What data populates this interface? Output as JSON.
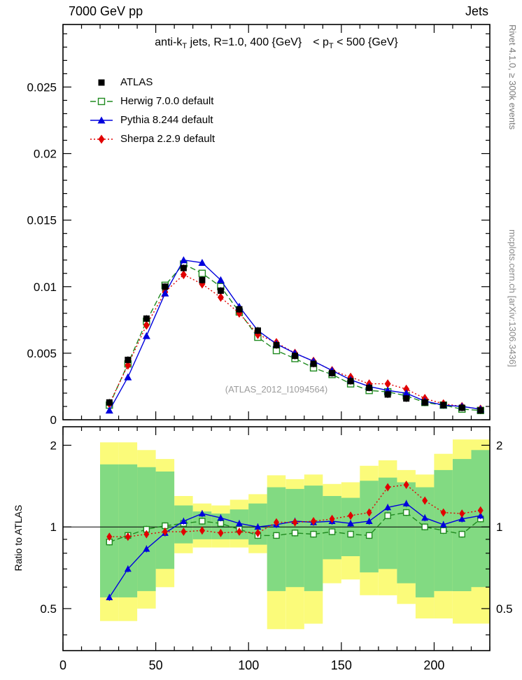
{
  "header": {
    "left": "7000 GeV pp",
    "right": "Jets"
  },
  "title": {
    "p1": "anti-k",
    "s1": "T",
    "p2": " jets, R=1.0, 400 {GeV}",
    "p3": "< p",
    "s2": "T",
    "p4": " < 500 {GeV}"
  },
  "watermark": "(ATLAS_2012_I1094564)",
  "side_notes": {
    "top": "Rivet 4.1.0, ≥ 300k events",
    "bottom": "mcplots.cern.ch [arXiv:1306.3436]"
  },
  "ratio_axis_label": "Ratio to ATLAS",
  "chart_data": {
    "type": "line",
    "title": "anti-kT jets, R=1.0, 400 {GeV} < pT < 500 {GeV}",
    "xlim": [
      0,
      230
    ],
    "xticks": [
      0,
      50,
      100,
      150,
      200
    ],
    "xtick_labels": [
      "0",
      "50",
      "100",
      "150",
      "200"
    ],
    "x_minor_step": 10,
    "x": [
      25,
      35,
      45,
      55,
      65,
      75,
      85,
      95,
      105,
      115,
      125,
      135,
      145,
      155,
      165,
      175,
      185,
      195,
      205,
      215,
      225
    ],
    "main": {
      "ylim": [
        0,
        0.0297
      ],
      "yticks": [
        0,
        0.005,
        0.01,
        0.015,
        0.02,
        0.025
      ],
      "ytick_labels": [
        "0",
        "0.005",
        "0.01",
        "0.015",
        "0.02",
        "0.025"
      ],
      "series": [
        {
          "name": "ATLAS",
          "color": "#000000",
          "marker": "square-filled",
          "line": "none",
          "values": [
            0.0013,
            0.0045,
            0.0076,
            0.01,
            0.0114,
            0.0105,
            0.0097,
            0.0083,
            0.0067,
            0.0056,
            0.0048,
            0.0042,
            0.0035,
            0.0029,
            0.0024,
            0.0019,
            0.0016,
            0.0013,
            0.0011,
            0.0009,
            0.0007
          ]
        },
        {
          "name": "Herwig 7.0.0 default",
          "color": "#1f8a1f",
          "marker": "square-open",
          "line": "dashed",
          "values": [
            0.0011,
            0.0042,
            0.0074,
            0.0101,
            0.0117,
            0.011,
            0.01,
            0.0081,
            0.0062,
            0.0052,
            0.0046,
            0.0039,
            0.0034,
            0.0027,
            0.0022,
            0.0021,
            0.0018,
            0.0013,
            0.0011,
            0.0008,
            0.0007
          ]
        },
        {
          "name": "Pythia 8.244 default",
          "color": "#0000dd",
          "marker": "triangle-up",
          "line": "solid",
          "values": [
            0.0007,
            0.0032,
            0.0063,
            0.0095,
            0.012,
            0.0118,
            0.0105,
            0.0085,
            0.0067,
            0.0057,
            0.005,
            0.0044,
            0.0037,
            0.003,
            0.0025,
            0.0022,
            0.002,
            0.0014,
            0.0011,
            0.001,
            0.0008
          ]
        },
        {
          "name": "Sherpa 2.2.9 default",
          "color": "#e10000",
          "marker": "diamond",
          "line": "dotted",
          "values": [
            0.0012,
            0.0041,
            0.0071,
            0.0096,
            0.0109,
            0.0102,
            0.0092,
            0.008,
            0.0064,
            0.0058,
            0.005,
            0.0044,
            0.0037,
            0.0032,
            0.0027,
            0.0027,
            0.0023,
            0.0016,
            0.0012,
            0.001,
            0.0008
          ]
        }
      ]
    },
    "ratio": {
      "scale": "log",
      "ylim": [
        0.35,
        2.34
      ],
      "yticks": [
        0.5,
        1,
        2
      ],
      "yticks_minor": [
        0.4,
        0.6,
        0.7,
        0.8,
        0.9
      ],
      "ytick_labels": [
        "0.5",
        "1",
        "2"
      ],
      "reference": 1,
      "series": [
        {
          "name": "Herwig 7.0.0 default",
          "values": [
            0.88,
            0.93,
            0.98,
            1.01,
            1.03,
            1.05,
            1.03,
            0.98,
            0.93,
            0.93,
            0.95,
            0.94,
            0.96,
            0.94,
            0.93,
            1.1,
            1.13,
            1.0,
            0.97,
            0.94,
            1.07
          ]
        },
        {
          "name": "Pythia 8.244 default",
          "values": [
            0.55,
            0.7,
            0.83,
            0.95,
            1.05,
            1.12,
            1.08,
            1.03,
            1.0,
            1.02,
            1.05,
            1.04,
            1.05,
            1.03,
            1.05,
            1.18,
            1.22,
            1.08,
            1.02,
            1.07,
            1.1
          ]
        },
        {
          "name": "Sherpa 2.2.9 default",
          "values": [
            0.92,
            0.92,
            0.94,
            0.96,
            0.96,
            0.97,
            0.95,
            0.96,
            0.95,
            1.04,
            1.04,
            1.05,
            1.07,
            1.1,
            1.13,
            1.4,
            1.43,
            1.25,
            1.13,
            1.12,
            1.15
          ]
        }
      ],
      "bands": {
        "bin_edges": [
          20,
          30,
          40,
          50,
          60,
          70,
          80,
          90,
          100,
          110,
          120,
          130,
          140,
          150,
          160,
          170,
          180,
          190,
          200,
          210,
          220,
          230
        ],
        "outer": {
          "color": "#fbfb7a",
          "lo": [
            0.45,
            0.45,
            0.5,
            0.6,
            0.8,
            0.84,
            0.84,
            0.84,
            0.8,
            0.42,
            0.42,
            0.44,
            0.62,
            0.64,
            0.56,
            0.56,
            0.52,
            0.46,
            0.46,
            0.44,
            0.44
          ],
          "hi": [
            2.05,
            2.05,
            1.92,
            1.78,
            1.3,
            1.22,
            1.2,
            1.26,
            1.32,
            1.55,
            1.5,
            1.56,
            1.44,
            1.46,
            1.68,
            1.76,
            1.62,
            1.56,
            1.86,
            2.1,
            2.1
          ]
        },
        "inner": {
          "color": "#82da82",
          "lo": [
            0.55,
            0.55,
            0.58,
            0.7,
            0.87,
            0.9,
            0.9,
            0.9,
            0.86,
            0.58,
            0.6,
            0.58,
            0.76,
            0.78,
            0.68,
            0.7,
            0.62,
            0.55,
            0.58,
            0.58,
            0.6
          ],
          "hi": [
            1.7,
            1.7,
            1.66,
            1.6,
            1.2,
            1.14,
            1.12,
            1.16,
            1.22,
            1.4,
            1.38,
            1.42,
            1.3,
            1.28,
            1.48,
            1.52,
            1.46,
            1.4,
            1.62,
            1.78,
            1.92
          ]
        }
      }
    }
  }
}
